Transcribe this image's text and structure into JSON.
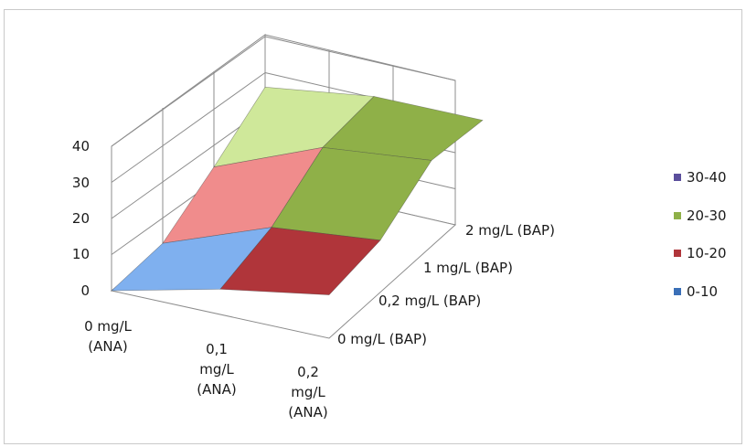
{
  "chart_data": {
    "type": "surface-3d",
    "x_categories": [
      "0 mg/L (ANA)",
      "0,1 mg/L (ANA)",
      "0,2 mg/L (ANA)"
    ],
    "depth_categories": [
      "0 mg/L (BAP)",
      "0,2 mg/L (BAP)",
      "1 mg/L (BAP)",
      "2 mg/L (BAP)"
    ],
    "z_ticks": [
      "0",
      "10",
      "20",
      "30",
      "40"
    ],
    "zlim": [
      0,
      40
    ],
    "grid": true,
    "values": [
      [
        0,
        7,
        12
      ],
      [
        3,
        14,
        17
      ],
      [
        14,
        26,
        29
      ],
      [
        26,
        30,
        30
      ]
    ],
    "legend": {
      "position": "right",
      "entries": [
        {
          "label": "30-40",
          "color": "#5b4f9c"
        },
        {
          "label": "20-30",
          "color": "#8fb048"
        },
        {
          "label": "10-20",
          "color": "#b0353a"
        },
        {
          "label": "0-10",
          "color": "#3a6fb7"
        }
      ]
    }
  }
}
